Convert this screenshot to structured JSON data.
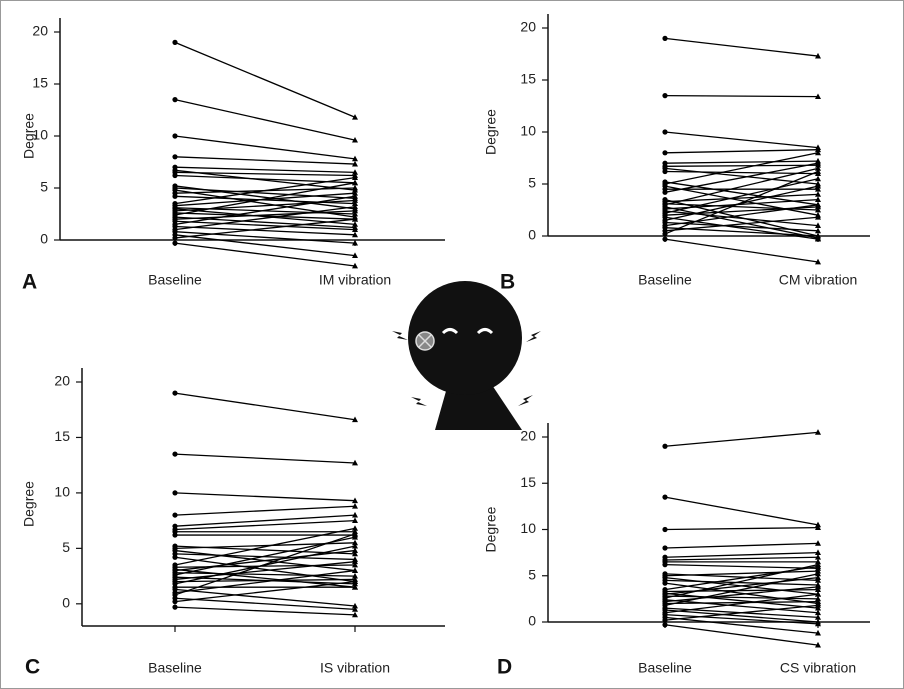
{
  "chart_data": [
    {
      "type": "paired",
      "panel": "A",
      "ylabel": "Degree",
      "categories": [
        "Baseline",
        "IM vibration"
      ],
      "ylim": [
        0,
        20
      ],
      "yticks": [
        0,
        5,
        10,
        15,
        20
      ],
      "values": [
        [
          19,
          11.8
        ],
        [
          13.5,
          9.6
        ],
        [
          10,
          7.8
        ],
        [
          8,
          7.3
        ],
        [
          7,
          6.5
        ],
        [
          6.7,
          4.8
        ],
        [
          6.5,
          6.2
        ],
        [
          6.2,
          5.5
        ],
        [
          5.2,
          3
        ],
        [
          5,
          4
        ],
        [
          4.8,
          2.2
        ],
        [
          4.5,
          5
        ],
        [
          4.2,
          3.5
        ],
        [
          3.5,
          6
        ],
        [
          3.3,
          4.5
        ],
        [
          3.1,
          2.5
        ],
        [
          3,
          1.5
        ],
        [
          2.8,
          3.8
        ],
        [
          2.6,
          2
        ],
        [
          2.4,
          5.5
        ],
        [
          2.2,
          1.2
        ],
        [
          2,
          2.8
        ],
        [
          1.8,
          1
        ],
        [
          1.5,
          4.2
        ],
        [
          1.3,
          0.5
        ],
        [
          1,
          3.2
        ],
        [
          0.8,
          -0.3
        ],
        [
          0.5,
          -1.5
        ],
        [
          0.2,
          2
        ],
        [
          -0.3,
          -2.5
        ]
      ]
    },
    {
      "type": "paired",
      "panel": "B",
      "ylabel": "Degree",
      "categories": [
        "Baseline",
        "CM vibration"
      ],
      "ylim": [
        0,
        20
      ],
      "yticks": [
        0,
        5,
        10,
        15,
        20
      ],
      "values": [
        [
          19,
          17.3
        ],
        [
          13.5,
          13.4
        ],
        [
          10,
          8.5
        ],
        [
          8,
          8.3
        ],
        [
          7,
          7.2
        ],
        [
          6.7,
          6.8
        ],
        [
          6.5,
          5
        ],
        [
          6.2,
          6
        ],
        [
          5.2,
          3
        ],
        [
          5,
          8
        ],
        [
          4.8,
          2
        ],
        [
          4.5,
          4.5
        ],
        [
          4.2,
          7
        ],
        [
          3.5,
          0
        ],
        [
          3.3,
          4
        ],
        [
          3.1,
          2.5
        ],
        [
          3,
          6.5
        ],
        [
          2.8,
          -0.2
        ],
        [
          2.6,
          3.5
        ],
        [
          2.4,
          1
        ],
        [
          2.2,
          5.5
        ],
        [
          2,
          2.8
        ],
        [
          1.8,
          -0.3
        ],
        [
          1.5,
          4.8
        ],
        [
          1.3,
          0.5
        ],
        [
          1,
          3
        ],
        [
          0.8,
          0
        ],
        [
          0.5,
          1.8
        ],
        [
          0.2,
          6.2
        ],
        [
          -0.3,
          -2.5
        ]
      ]
    },
    {
      "type": "paired",
      "panel": "C",
      "ylabel": "Degree",
      "categories": [
        "Baseline",
        "IS vibration"
      ],
      "ylim": [
        -2,
        20
      ],
      "yticks": [
        0,
        5,
        10,
        15,
        20
      ],
      "values": [
        [
          19,
          16.6
        ],
        [
          13.5,
          12.7
        ],
        [
          10,
          9.3
        ],
        [
          8,
          8.8
        ],
        [
          7,
          8
        ],
        [
          6.7,
          7.5
        ],
        [
          6.5,
          6.5
        ],
        [
          6.2,
          6.2
        ],
        [
          5.2,
          4.5
        ],
        [
          5,
          5.5
        ],
        [
          4.8,
          3
        ],
        [
          4.5,
          4
        ],
        [
          4.2,
          2
        ],
        [
          3.5,
          6.8
        ],
        [
          3.3,
          3.5
        ],
        [
          3.1,
          1.5
        ],
        [
          3,
          4.8
        ],
        [
          2.8,
          2.5
        ],
        [
          2.6,
          6
        ],
        [
          2.4,
          1.8
        ],
        [
          2.2,
          3.8
        ],
        [
          2,
          2.2
        ],
        [
          1.8,
          5.2
        ],
        [
          1.5,
          1.5
        ],
        [
          1.3,
          -0.2
        ],
        [
          1,
          3
        ],
        [
          0.8,
          6.3
        ],
        [
          0.5,
          -0.5
        ],
        [
          0.2,
          2
        ],
        [
          -0.3,
          -1
        ]
      ]
    },
    {
      "type": "paired",
      "panel": "D",
      "ylabel": "Degree",
      "categories": [
        "Baseline",
        "CS vibration"
      ],
      "ylim": [
        0,
        20
      ],
      "yticks": [
        0,
        5,
        10,
        15,
        20
      ],
      "values": [
        [
          19,
          20.5
        ],
        [
          13.5,
          10.5
        ],
        [
          10,
          10.2
        ],
        [
          8,
          8.5
        ],
        [
          7,
          7.5
        ],
        [
          6.7,
          7
        ],
        [
          6.5,
          6.5
        ],
        [
          6.2,
          5.8
        ],
        [
          5.2,
          4.5
        ],
        [
          5,
          5.5
        ],
        [
          4.8,
          3
        ],
        [
          4.5,
          4
        ],
        [
          4.2,
          2
        ],
        [
          3.5,
          6
        ],
        [
          3.3,
          3.5
        ],
        [
          3.1,
          1.5
        ],
        [
          3,
          4.8
        ],
        [
          2.8,
          2.5
        ],
        [
          2.6,
          6.2
        ],
        [
          2.4,
          1
        ],
        [
          2.2,
          3.8
        ],
        [
          2,
          2.2
        ],
        [
          1.8,
          5.2
        ],
        [
          1.5,
          0.5
        ],
        [
          1.3,
          0
        ],
        [
          1,
          3
        ],
        [
          0.8,
          -0.2
        ],
        [
          0.5,
          -1.2
        ],
        [
          0.2,
          1.8
        ],
        [
          -0.3,
          -2.5
        ]
      ]
    }
  ]
}
